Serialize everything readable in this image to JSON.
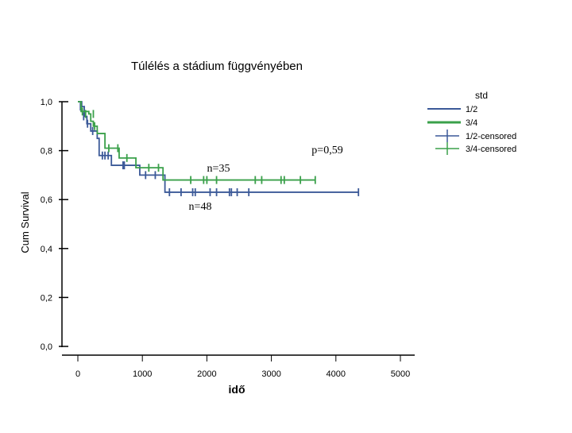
{
  "chart_data": {
    "type": "line",
    "title": "Túlélés a stádium függvényében",
    "xlabel": "idő",
    "ylabel": "Cum Survival",
    "xlim": [
      0,
      5000
    ],
    "ylim": [
      0,
      1
    ],
    "x_ticks": [
      0,
      1000,
      2000,
      3000,
      4000,
      5000
    ],
    "x_tick_labels": [
      "0",
      "1000",
      "2000",
      "3000",
      "4000",
      "5000"
    ],
    "y_ticks": [
      0,
      0.2,
      0.4,
      0.6,
      0.8,
      1.0
    ],
    "y_tick_labels": [
      "0,0",
      "0,2",
      "0,4",
      "0,6",
      "0,8",
      "1,0"
    ],
    "grid": false,
    "legend": {
      "title": "std",
      "placement": "top-right",
      "entries": [
        "1/2",
        "3/4",
        "1/2-censored",
        "3/4-censored"
      ]
    },
    "annotations": [
      "p=0,59",
      "n=35",
      "n=48"
    ],
    "series": [
      {
        "name": "1/2",
        "color": "#3b5998",
        "steps": [
          [
            0,
            1.0
          ],
          [
            60,
            0.98
          ],
          [
            100,
            0.94
          ],
          [
            140,
            0.91
          ],
          [
            200,
            0.88
          ],
          [
            300,
            0.85
          ],
          [
            330,
            0.78
          ],
          [
            520,
            0.74
          ],
          [
            960,
            0.7
          ],
          [
            1350,
            0.63
          ],
          [
            4350,
            0.63
          ]
        ],
        "censored": [
          [
            40,
            0.98
          ],
          [
            90,
            0.94
          ],
          [
            150,
            0.91
          ],
          [
            230,
            0.88
          ],
          [
            380,
            0.78
          ],
          [
            420,
            0.78
          ],
          [
            470,
            0.78
          ],
          [
            700,
            0.74
          ],
          [
            720,
            0.74
          ],
          [
            1050,
            0.7
          ],
          [
            1200,
            0.7
          ],
          [
            1420,
            0.63
          ],
          [
            1600,
            0.63
          ],
          [
            1780,
            0.63
          ],
          [
            1820,
            0.63
          ],
          [
            2050,
            0.63
          ],
          [
            2150,
            0.63
          ],
          [
            2350,
            0.63
          ],
          [
            2380,
            0.63
          ],
          [
            2470,
            0.63
          ],
          [
            2650,
            0.63
          ],
          [
            4350,
            0.63
          ]
        ]
      },
      {
        "name": "3/4",
        "color": "#3aa04a",
        "steps": [
          [
            0,
            1.0
          ],
          [
            50,
            0.96
          ],
          [
            170,
            0.95
          ],
          [
            200,
            0.92
          ],
          [
            240,
            0.9
          ],
          [
            300,
            0.87
          ],
          [
            420,
            0.81
          ],
          [
            640,
            0.77
          ],
          [
            900,
            0.73
          ],
          [
            1320,
            0.68
          ],
          [
            3680,
            0.68
          ]
        ],
        "censored": [
          [
            70,
            0.96
          ],
          [
            120,
            0.95
          ],
          [
            240,
            0.95
          ],
          [
            260,
            0.9
          ],
          [
            480,
            0.81
          ],
          [
            620,
            0.81
          ],
          [
            760,
            0.77
          ],
          [
            1100,
            0.73
          ],
          [
            1250,
            0.73
          ],
          [
            1750,
            0.68
          ],
          [
            1950,
            0.68
          ],
          [
            2000,
            0.68
          ],
          [
            2150,
            0.68
          ],
          [
            2750,
            0.68
          ],
          [
            2850,
            0.68
          ],
          [
            3150,
            0.68
          ],
          [
            3200,
            0.68
          ],
          [
            3450,
            0.68
          ],
          [
            3680,
            0.68
          ]
        ]
      }
    ]
  }
}
